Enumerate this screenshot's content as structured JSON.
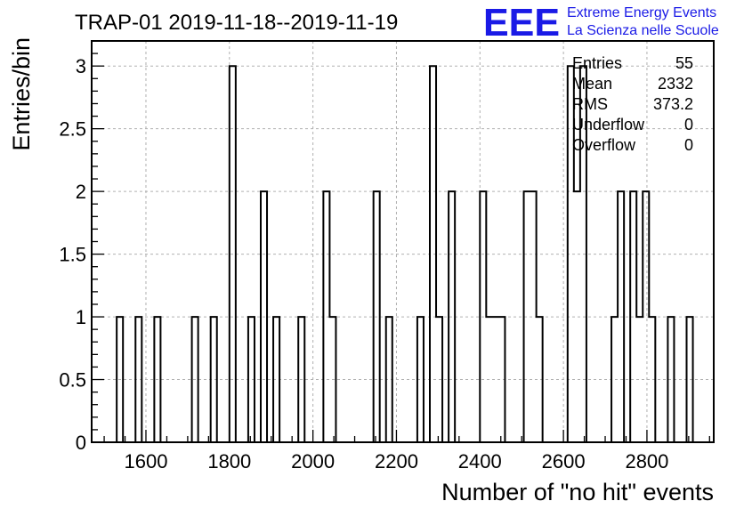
{
  "chart_data": {
    "type": "bar",
    "title": "TRAP-01 2019-11-18--2019-11-19",
    "xlabel": "Number of \"no hit\" events",
    "ylabel": "Entries/bin",
    "xlim": [
      1470,
      2960
    ],
    "ylim": [
      0,
      3.2
    ],
    "x_ticks": [
      1600,
      1800,
      2000,
      2200,
      2400,
      2600,
      2800
    ],
    "y_ticks": [
      0,
      0.5,
      1,
      1.5,
      2,
      2.5,
      3
    ],
    "grid": true,
    "bin_width": 15,
    "bins": [
      {
        "x": 1530,
        "y": 1
      },
      {
        "x": 1575,
        "y": 1
      },
      {
        "x": 1620,
        "y": 1
      },
      {
        "x": 1710,
        "y": 1
      },
      {
        "x": 1755,
        "y": 1
      },
      {
        "x": 1800,
        "y": 3
      },
      {
        "x": 1845,
        "y": 1
      },
      {
        "x": 1875,
        "y": 2
      },
      {
        "x": 1905,
        "y": 1
      },
      {
        "x": 1965,
        "y": 1
      },
      {
        "x": 2025,
        "y": 2
      },
      {
        "x": 2040,
        "y": 1
      },
      {
        "x": 2145,
        "y": 2
      },
      {
        "x": 2175,
        "y": 1
      },
      {
        "x": 2250,
        "y": 1
      },
      {
        "x": 2280,
        "y": 3
      },
      {
        "x": 2295,
        "y": 1
      },
      {
        "x": 2325,
        "y": 2
      },
      {
        "x": 2400,
        "y": 2
      },
      {
        "x": 2415,
        "y": 1
      },
      {
        "x": 2430,
        "y": 1
      },
      {
        "x": 2445,
        "y": 1
      },
      {
        "x": 2505,
        "y": 2
      },
      {
        "x": 2520,
        "y": 2
      },
      {
        "x": 2535,
        "y": 1
      },
      {
        "x": 2610,
        "y": 3
      },
      {
        "x": 2625,
        "y": 2
      },
      {
        "x": 2640,
        "y": 3
      },
      {
        "x": 2715,
        "y": 1
      },
      {
        "x": 2730,
        "y": 2
      },
      {
        "x": 2760,
        "y": 2
      },
      {
        "x": 2775,
        "y": 1
      },
      {
        "x": 2790,
        "y": 2
      },
      {
        "x": 2805,
        "y": 1
      },
      {
        "x": 2850,
        "y": 1
      },
      {
        "x": 2895,
        "y": 1
      }
    ],
    "legend_position": "top-right",
    "stats": [
      {
        "label": "Entries",
        "value": "55"
      },
      {
        "label": "Mean",
        "value": "2332"
      },
      {
        "label": "RMS",
        "value": "373.2"
      },
      {
        "label": "Underflow",
        "value": "0"
      },
      {
        "label": "Overflow",
        "value": "0"
      }
    ],
    "line_color": "#000000",
    "grid_color": "#b0b0b0"
  },
  "logo": {
    "mark": "EEE",
    "line1": "Extreme Energy Events",
    "line2": "La Scienza nelle Scuole",
    "color": "#1a1ae6"
  }
}
